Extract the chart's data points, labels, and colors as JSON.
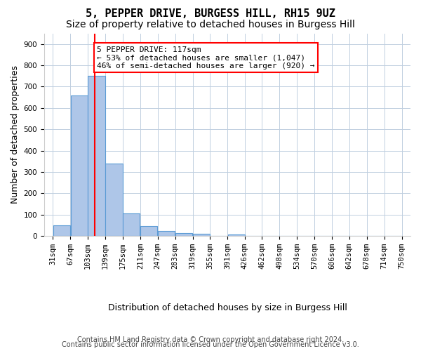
{
  "title_line1": "5, PEPPER DRIVE, BURGESS HILL, RH15 9UZ",
  "title_line2": "Size of property relative to detached houses in Burgess Hill",
  "xlabel": "Distribution of detached houses by size in Burgess Hill",
  "ylabel": "Number of detached properties",
  "bin_labels": [
    "31sqm",
    "67sqm",
    "103sqm",
    "139sqm",
    "175sqm",
    "211sqm",
    "247sqm",
    "283sqm",
    "319sqm",
    "355sqm",
    "391sqm",
    "426sqm",
    "462sqm",
    "498sqm",
    "534sqm",
    "570sqm",
    "606sqm",
    "642sqm",
    "678sqm",
    "714sqm",
    "750sqm"
  ],
  "bin_edges": [
    31,
    67,
    103,
    139,
    175,
    211,
    247,
    283,
    319,
    355,
    391,
    426,
    462,
    498,
    534,
    570,
    606,
    642,
    678,
    714,
    750
  ],
  "bar_heights": [
    50,
    660,
    750,
    340,
    107,
    48,
    22,
    14,
    10,
    0,
    8,
    0,
    0,
    0,
    0,
    0,
    0,
    0,
    0,
    0
  ],
  "bar_color": "#aec6e8",
  "bar_edge_color": "#5b9bd5",
  "red_line_x": 117,
  "annotation_text": "5 PEPPER DRIVE: 117sqm\n← 53% of detached houses are smaller (1,047)\n46% of semi-detached houses are larger (920) →",
  "annotation_box_color": "white",
  "annotation_box_edge_color": "red",
  "red_line_color": "red",
  "ylim": [
    0,
    950
  ],
  "yticks": [
    0,
    100,
    200,
    300,
    400,
    500,
    600,
    700,
    800,
    900
  ],
  "grid_color": "#c0cfe0",
  "background_color": "white",
  "footer_line1": "Contains HM Land Registry data © Crown copyright and database right 2024.",
  "footer_line2": "Contains public sector information licensed under the Open Government Licence v3.0.",
  "title_fontsize": 11,
  "subtitle_fontsize": 10,
  "axis_label_fontsize": 9,
  "tick_fontsize": 7.5,
  "annotation_fontsize": 8,
  "footer_fontsize": 7
}
